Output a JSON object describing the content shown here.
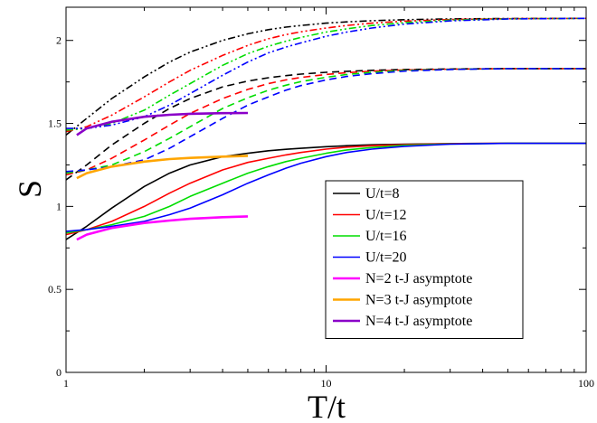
{
  "chart_data": {
    "type": "line",
    "xlabel": "T/t",
    "ylabel": "S",
    "xscale": "log",
    "xlim": [
      1,
      100
    ],
    "ylim": [
      0,
      2.2
    ],
    "xticks": [
      1,
      10,
      100
    ],
    "xtick_labels": [
      "1",
      "10",
      "100"
    ],
    "yticks": [
      0,
      0.5,
      1,
      1.5,
      2
    ],
    "ytick_labels": [
      "0",
      "0.5",
      "1",
      "1.5",
      "2"
    ],
    "grid": false,
    "legend_position": "center-right",
    "legend": [
      {
        "label": "U/t=8",
        "color": "#000000"
      },
      {
        "label": "U/t=12",
        "color": "#ff0000"
      },
      {
        "label": "U/t=16",
        "color": "#00dd00"
      },
      {
        "label": "U/t=20",
        "color": "#0000ff"
      },
      {
        "label": "N=2 t-J asymptote",
        "color": "#ff00ff"
      },
      {
        "label": "N=3 t-J asymptote",
        "color": "#ffa500"
      },
      {
        "label": "N=4 t-J asymptote",
        "color": "#8a00c8"
      }
    ],
    "x": [
      1,
      1.2,
      1.5,
      2,
      2.5,
      3,
      4,
      5,
      6,
      7,
      8,
      10,
      12,
      15,
      20,
      30,
      50,
      100
    ],
    "series": [
      {
        "group": "N=2",
        "style": "solid",
        "color": "#000000",
        "values": [
          0.8,
          0.88,
          0.99,
          1.12,
          1.2,
          1.25,
          1.3,
          1.32,
          1.335,
          1.344,
          1.35,
          1.36,
          1.366,
          1.371,
          1.375,
          1.378,
          1.38,
          1.38
        ]
      },
      {
        "group": "N=2",
        "style": "solid",
        "color": "#ff0000",
        "values": [
          0.83,
          0.86,
          0.91,
          1.0,
          1.08,
          1.14,
          1.22,
          1.265,
          1.29,
          1.31,
          1.325,
          1.345,
          1.357,
          1.366,
          1.372,
          1.378,
          1.38,
          1.38
        ]
      },
      {
        "group": "N=2",
        "style": "solid",
        "color": "#00dd00",
        "values": [
          0.84,
          0.86,
          0.89,
          0.94,
          1.0,
          1.06,
          1.14,
          1.2,
          1.24,
          1.27,
          1.29,
          1.32,
          1.34,
          1.355,
          1.368,
          1.376,
          1.38,
          1.38
        ]
      },
      {
        "group": "N=2",
        "style": "solid",
        "color": "#0000ff",
        "values": [
          0.85,
          0.86,
          0.88,
          0.91,
          0.95,
          0.99,
          1.07,
          1.14,
          1.19,
          1.23,
          1.26,
          1.3,
          1.325,
          1.345,
          1.362,
          1.375,
          1.38,
          1.38
        ]
      },
      {
        "group": "N=3",
        "style": "dashed",
        "color": "#000000",
        "values": [
          1.16,
          1.25,
          1.37,
          1.5,
          1.59,
          1.65,
          1.72,
          1.755,
          1.775,
          1.788,
          1.797,
          1.808,
          1.814,
          1.82,
          1.825,
          1.828,
          1.83,
          1.83
        ]
      },
      {
        "group": "N=3",
        "style": "dashed",
        "color": "#ff0000",
        "values": [
          1.19,
          1.22,
          1.29,
          1.4,
          1.49,
          1.56,
          1.65,
          1.705,
          1.74,
          1.762,
          1.777,
          1.795,
          1.806,
          1.815,
          1.822,
          1.827,
          1.83,
          1.83
        ]
      },
      {
        "group": "N=3",
        "style": "dashed",
        "color": "#00dd00",
        "values": [
          1.2,
          1.22,
          1.25,
          1.33,
          1.41,
          1.48,
          1.59,
          1.655,
          1.7,
          1.73,
          1.752,
          1.778,
          1.795,
          1.808,
          1.819,
          1.826,
          1.83,
          1.83
        ]
      },
      {
        "group": "N=3",
        "style": "dashed",
        "color": "#0000ff",
        "values": [
          1.21,
          1.22,
          1.24,
          1.28,
          1.35,
          1.42,
          1.53,
          1.61,
          1.66,
          1.7,
          1.728,
          1.762,
          1.783,
          1.8,
          1.815,
          1.825,
          1.83,
          1.83
        ]
      },
      {
        "group": "N=4",
        "style": "dashdotdot",
        "color": "#000000",
        "values": [
          1.43,
          1.53,
          1.65,
          1.78,
          1.87,
          1.93,
          2.0,
          2.04,
          2.065,
          2.08,
          2.09,
          2.104,
          2.112,
          2.119,
          2.125,
          2.13,
          2.132,
          2.133
        ]
      },
      {
        "group": "N=4",
        "style": "dashdotdot",
        "color": "#ff0000",
        "values": [
          1.45,
          1.48,
          1.55,
          1.66,
          1.75,
          1.82,
          1.91,
          1.97,
          2.01,
          2.035,
          2.052,
          2.075,
          2.09,
          2.104,
          2.116,
          2.126,
          2.131,
          2.133
        ]
      },
      {
        "group": "N=4",
        "style": "dashdotdot",
        "color": "#00dd00",
        "values": [
          1.46,
          1.47,
          1.5,
          1.58,
          1.67,
          1.74,
          1.85,
          1.92,
          1.965,
          1.995,
          2.018,
          2.05,
          2.07,
          2.09,
          2.107,
          2.122,
          2.13,
          2.133
        ]
      },
      {
        "group": "N=4",
        "style": "dashdotdot",
        "color": "#0000ff",
        "values": [
          1.47,
          1.47,
          1.49,
          1.54,
          1.61,
          1.68,
          1.79,
          1.87,
          1.925,
          1.96,
          1.985,
          2.025,
          2.05,
          2.075,
          2.098,
          2.118,
          2.129,
          2.133
        ]
      },
      {
        "group": "asymptote",
        "style": "solid",
        "color": "#ff00ff",
        "x": [
          1.1,
          1.2,
          1.5,
          2,
          2.5,
          3,
          4,
          5
        ],
        "values": [
          0.8,
          0.83,
          0.87,
          0.9,
          0.915,
          0.925,
          0.935,
          0.94
        ]
      },
      {
        "group": "asymptote",
        "style": "solid",
        "color": "#ffa500",
        "x": [
          1.1,
          1.2,
          1.5,
          2,
          2.5,
          3,
          4,
          5
        ],
        "values": [
          1.17,
          1.2,
          1.24,
          1.27,
          1.285,
          1.292,
          1.3,
          1.305
        ]
      },
      {
        "group": "asymptote",
        "style": "solid",
        "color": "#8a00c8",
        "x": [
          1.1,
          1.2,
          1.5,
          2,
          2.5,
          3,
          4,
          5
        ],
        "values": [
          1.43,
          1.47,
          1.51,
          1.54,
          1.552,
          1.558,
          1.562,
          1.563
        ]
      }
    ]
  }
}
